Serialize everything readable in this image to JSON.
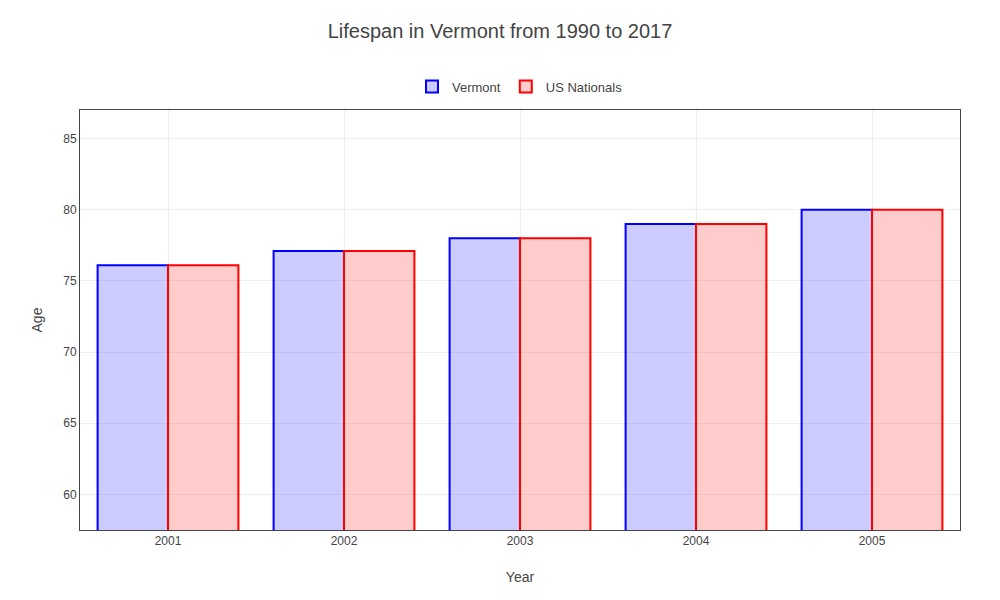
{
  "chart_data": {
    "type": "bar",
    "title": "Lifespan in Vermont from 1990 to 2017",
    "xlabel": "Year",
    "ylabel": "Age",
    "categories": [
      "2001",
      "2002",
      "2003",
      "2004",
      "2005"
    ],
    "series": [
      {
        "name": "Vermont",
        "color": "#0000ff",
        "values": [
          76.1,
          77.1,
          78.0,
          79.0,
          80.0
        ]
      },
      {
        "name": "US Nationals",
        "color": "#ff0000",
        "values": [
          76.1,
          77.1,
          78.0,
          79.0,
          80.0
        ]
      }
    ],
    "ylim": [
      57.5,
      87
    ],
    "yticks": [
      60,
      65,
      70,
      75,
      80,
      85
    ],
    "grid": true,
    "legend": "upper center"
  }
}
